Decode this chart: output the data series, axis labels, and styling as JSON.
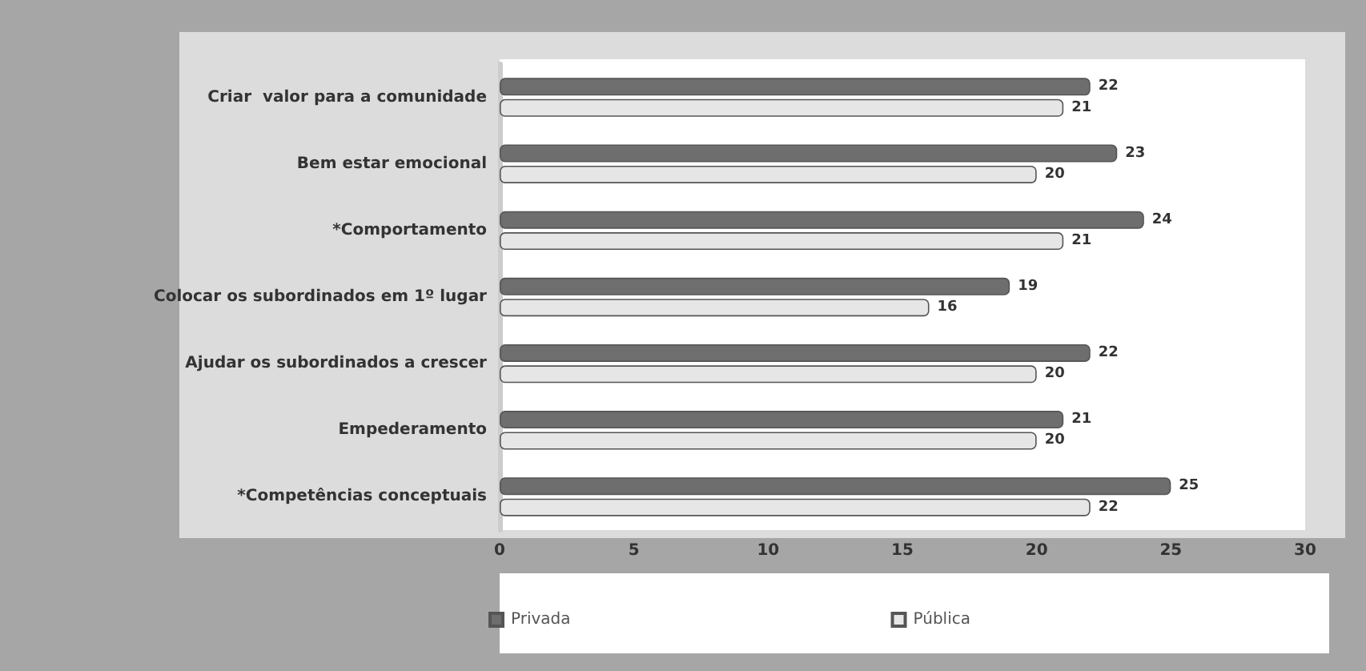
{
  "chart_data": {
    "type": "bar",
    "orientation": "horizontal",
    "categories": [
      "Criar  valor para a comunidade",
      "Bem estar emocional",
      "*Comportamento",
      "Colocar os subordinados em 1º lugar",
      "Ajudar os subordinados a crescer",
      "Empederamento",
      "*Competências conceptuais"
    ],
    "series": [
      {
        "name": "Privada",
        "color": "#6e6e6e",
        "values": [
          22,
          23,
          24,
          19,
          22,
          21,
          25
        ]
      },
      {
        "name": "Pública",
        "color": "#e6e6e6",
        "values": [
          21,
          20,
          21,
          16,
          20,
          20,
          22
        ]
      }
    ],
    "xlim": [
      0,
      30
    ],
    "xticks": [
      0,
      5,
      10,
      15,
      20,
      25,
      30
    ],
    "data_labels": true,
    "grid": false,
    "legend": "bottom"
  }
}
